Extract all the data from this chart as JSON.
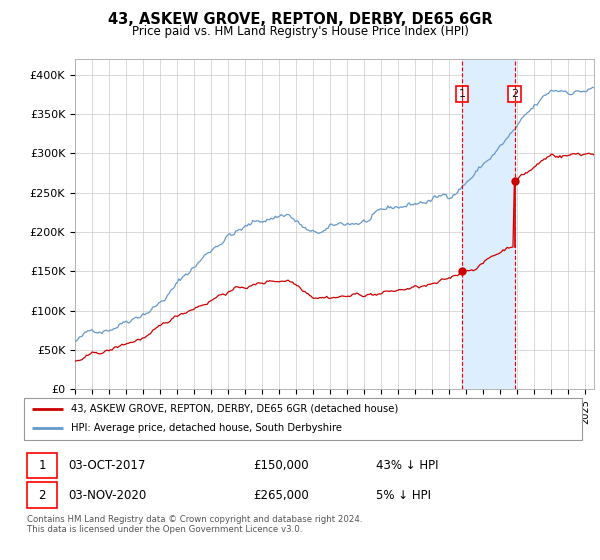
{
  "title": "43, ASKEW GROVE, REPTON, DERBY, DE65 6GR",
  "subtitle": "Price paid vs. HM Land Registry's House Price Index (HPI)",
  "ylim": [
    0,
    420000
  ],
  "xlim_start": 1995.0,
  "xlim_end": 2025.5,
  "legend_line1": "43, ASKEW GROVE, REPTON, DERBY, DE65 6GR (detached house)",
  "legend_line2": "HPI: Average price, detached house, South Derbyshire",
  "sale1_date": 2017.75,
  "sale1_price": 150000,
  "sale2_date": 2020.83,
  "sale2_price": 265000,
  "footnote": "Contains HM Land Registry data © Crown copyright and database right 2024.\nThis data is licensed under the Open Government Licence v3.0.",
  "line_color_red": "#cc0000",
  "line_color_blue": "#6699cc",
  "shade_color": "#ddeeff",
  "grid_color": "#cccccc"
}
